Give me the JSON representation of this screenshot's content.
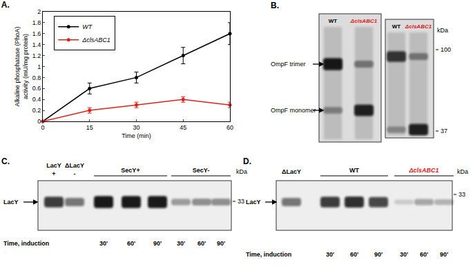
{
  "chart_data": {
    "type": "line",
    "title": "A.",
    "x": [
      0,
      15,
      30,
      45,
      60
    ],
    "xlabel": "Time (min)",
    "ylabel": [
      "Alkaline phosphatase (PhoA)",
      "activity (mU/mg protein)"
    ],
    "xlim": [
      0,
      60
    ],
    "xticks": [
      0,
      15,
      30,
      45,
      60
    ],
    "ylim": [
      0,
      2
    ],
    "yticks": [
      0,
      0.2,
      0.4,
      0.6,
      0.8,
      1,
      1.2,
      1.4,
      1.6,
      1.8,
      2
    ],
    "grid": false,
    "legend": "upper left",
    "marker": "circle",
    "series": [
      {
        "name": "WT",
        "color": "#000000",
        "values": [
          0,
          0.6,
          0.8,
          1.2,
          1.6
        ],
        "errors": [
          0,
          0.1,
          0.1,
          0.15,
          0.2
        ]
      },
      {
        "name": "ΔclsABC1",
        "color": "#e0201b",
        "values": [
          0,
          0.2,
          0.3,
          0.4,
          0.3
        ],
        "errors": [
          0,
          0.05,
          0.05,
          0.05,
          0.05
        ]
      }
    ]
  },
  "panels": {
    "B": {
      "label": "B.",
      "blots": [
        {
          "lanes": [
            {
              "label": "WT"
            },
            {
              "label": "ΔclsABC1",
              "color": "#e0201b"
            }
          ],
          "bands": [
            {
              "label": "OmpF trimer",
              "intensities": [
                0.95,
                0.4
              ]
            },
            {
              "label": "OmpF monomer",
              "intensities": [
                0.35,
                0.9
              ]
            }
          ]
        },
        {
          "lanes": [
            {
              "label": "WT"
            },
            {
              "label": "ΔclsABC1",
              "color": "#e0201b"
            }
          ],
          "bands": [
            {
              "intensities": [
                0.8,
                0.4
              ]
            },
            {
              "intensities": [
                0.3,
                0.9
              ]
            }
          ],
          "markers": {
            "unit": "kDa",
            "ticks": [
              "100",
              "37"
            ]
          }
        }
      ]
    },
    "C": {
      "label": "C.",
      "target": "LacY",
      "time_label": "Time, induction",
      "markers": {
        "unit": "kDa",
        "ticks": [
          "33"
        ]
      },
      "groups": [
        {
          "label": "SecY+"
        },
        {
          "label": "SecY-"
        }
      ],
      "lanes": [
        {
          "label": [
            "LacY",
            "+"
          ],
          "intensity": 0.8
        },
        {
          "label": [
            "ΔLacY",
            "-"
          ],
          "intensity": 0.55
        },
        {
          "group": 0,
          "time": "30'",
          "intensity": 0.95
        },
        {
          "group": 0,
          "time": "60'",
          "intensity": 0.95
        },
        {
          "group": 0,
          "time": "90'",
          "intensity": 0.95
        },
        {
          "group": 1,
          "time": "30'",
          "intensity": 0.35
        },
        {
          "group": 1,
          "time": "60'",
          "intensity": 0.4
        },
        {
          "group": 1,
          "time": "90'",
          "intensity": 0.4
        }
      ]
    },
    "D": {
      "label": "D.",
      "target": "LacY",
      "time_label": "Time, induction",
      "markers": {
        "unit": "kDa",
        "ticks": [
          "33"
        ]
      },
      "groups": [
        {
          "label": "WT"
        },
        {
          "label": "ΔclsABC1",
          "color": "#e0201b"
        }
      ],
      "lanes": [
        {
          "label": [
            "ΔLacY"
          ],
          "intensity": 0.55
        },
        {
          "group": 0,
          "time": "30'",
          "intensity": 0.8
        },
        {
          "group": 0,
          "time": "60'",
          "intensity": 0.85
        },
        {
          "group": 0,
          "time": "90'",
          "intensity": 0.75
        },
        {
          "group": 1,
          "time": "30'",
          "intensity": 0.15
        },
        {
          "group": 1,
          "time": "60'",
          "intensity": 0.3
        },
        {
          "group": 1,
          "time": "90'",
          "intensity": 0.25
        }
      ]
    }
  }
}
